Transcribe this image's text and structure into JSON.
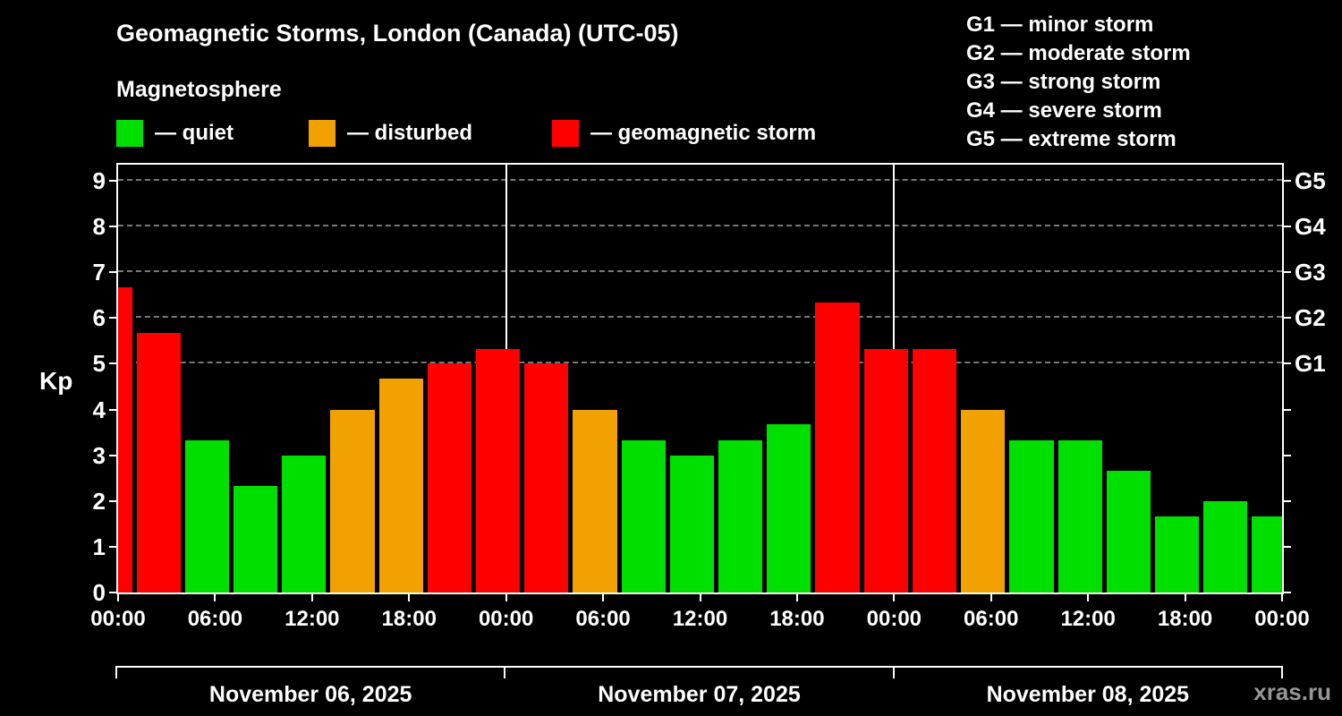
{
  "header": {
    "title": "Geomagnetic Storms, London (Canada) (UTC-05)",
    "subtitle": "Magnetosphere"
  },
  "legend": {
    "items": [
      {
        "status": "quiet",
        "label": "— quiet"
      },
      {
        "status": "disturbed",
        "label": "— disturbed"
      },
      {
        "status": "storm",
        "label": "— geomagnetic storm"
      }
    ]
  },
  "g_legend": [
    "G1 — minor storm",
    "G2 — moderate storm",
    "G3 — strong storm",
    "G4 — severe storm",
    "G5 — extreme storm"
  ],
  "watermark": "xras.ru",
  "chart_data": {
    "type": "bar",
    "title": "Geomagnetic Storms, London (Canada) (UTC-05)",
    "ylabel": "Kp",
    "ylim": [
      0,
      9.35
    ],
    "total_hours": 72,
    "grid_on": true,
    "grid_kp": [
      5,
      6,
      7,
      8,
      9
    ],
    "day_boundary_hours": [
      24,
      48
    ],
    "yticks": [
      0,
      1,
      2,
      3,
      4,
      5,
      6,
      7,
      8,
      9
    ],
    "g_levels": [
      {
        "kp": 5,
        "label": "G1"
      },
      {
        "kp": 6,
        "label": "G2"
      },
      {
        "kp": 7,
        "label": "G3"
      },
      {
        "kp": 8,
        "label": "G4"
      },
      {
        "kp": 9,
        "label": "G5"
      }
    ],
    "x_ticks": [
      {
        "hour": 0,
        "label": "00:00"
      },
      {
        "hour": 6,
        "label": "06:00"
      },
      {
        "hour": 12,
        "label": "12:00"
      },
      {
        "hour": 18,
        "label": "18:00"
      },
      {
        "hour": 24,
        "label": "00:00"
      },
      {
        "hour": 30,
        "label": "06:00"
      },
      {
        "hour": 36,
        "label": "12:00"
      },
      {
        "hour": 42,
        "label": "18:00"
      },
      {
        "hour": 48,
        "label": "00:00"
      },
      {
        "hour": 54,
        "label": "06:00"
      },
      {
        "hour": 60,
        "label": "12:00"
      },
      {
        "hour": 66,
        "label": "18:00"
      },
      {
        "hour": 72,
        "label": "00:00"
      }
    ],
    "days": [
      {
        "label": "November 06, 2025",
        "start_hour": 0,
        "end_hour": 24
      },
      {
        "label": "November 07, 2025",
        "start_hour": 24,
        "end_hour": 48
      },
      {
        "label": "November 08, 2025",
        "start_hour": 48,
        "end_hour": 72
      }
    ],
    "colors": {
      "quiet": "#00e000",
      "disturbed": "#f2a200",
      "storm": "#ff0000"
    },
    "bars": [
      {
        "start_hour": -2,
        "end_hour": 1,
        "kp": 6.67,
        "status": "storm"
      },
      {
        "start_hour": 1,
        "end_hour": 4,
        "kp": 5.67,
        "status": "storm"
      },
      {
        "start_hour": 4,
        "end_hour": 7,
        "kp": 3.33,
        "status": "quiet"
      },
      {
        "start_hour": 7,
        "end_hour": 10,
        "kp": 2.33,
        "status": "quiet"
      },
      {
        "start_hour": 10,
        "end_hour": 13,
        "kp": 3.0,
        "status": "quiet"
      },
      {
        "start_hour": 13,
        "end_hour": 16,
        "kp": 4.0,
        "status": "disturbed"
      },
      {
        "start_hour": 16,
        "end_hour": 19,
        "kp": 4.67,
        "status": "disturbed"
      },
      {
        "start_hour": 19,
        "end_hour": 22,
        "kp": 5.0,
        "status": "storm"
      },
      {
        "start_hour": 22,
        "end_hour": 25,
        "kp": 5.33,
        "status": "storm"
      },
      {
        "start_hour": 25,
        "end_hour": 28,
        "kp": 5.0,
        "status": "storm"
      },
      {
        "start_hour": 28,
        "end_hour": 31,
        "kp": 4.0,
        "status": "disturbed"
      },
      {
        "start_hour": 31,
        "end_hour": 34,
        "kp": 3.33,
        "status": "quiet"
      },
      {
        "start_hour": 34,
        "end_hour": 37,
        "kp": 3.0,
        "status": "quiet"
      },
      {
        "start_hour": 37,
        "end_hour": 40,
        "kp": 3.33,
        "status": "quiet"
      },
      {
        "start_hour": 40,
        "end_hour": 43,
        "kp": 3.67,
        "status": "quiet"
      },
      {
        "start_hour": 43,
        "end_hour": 46,
        "kp": 6.33,
        "status": "storm"
      },
      {
        "start_hour": 46,
        "end_hour": 49,
        "kp": 5.33,
        "status": "storm"
      },
      {
        "start_hour": 49,
        "end_hour": 52,
        "kp": 5.33,
        "status": "storm"
      },
      {
        "start_hour": 52,
        "end_hour": 55,
        "kp": 4.0,
        "status": "disturbed"
      },
      {
        "start_hour": 55,
        "end_hour": 58,
        "kp": 3.33,
        "status": "quiet"
      },
      {
        "start_hour": 58,
        "end_hour": 61,
        "kp": 3.33,
        "status": "quiet"
      },
      {
        "start_hour": 61,
        "end_hour": 64,
        "kp": 2.67,
        "status": "quiet"
      },
      {
        "start_hour": 64,
        "end_hour": 67,
        "kp": 1.67,
        "status": "quiet"
      },
      {
        "start_hour": 67,
        "end_hour": 70,
        "kp": 2.0,
        "status": "quiet"
      },
      {
        "start_hour": 70,
        "end_hour": 73,
        "kp": 1.67,
        "status": "quiet"
      }
    ]
  }
}
